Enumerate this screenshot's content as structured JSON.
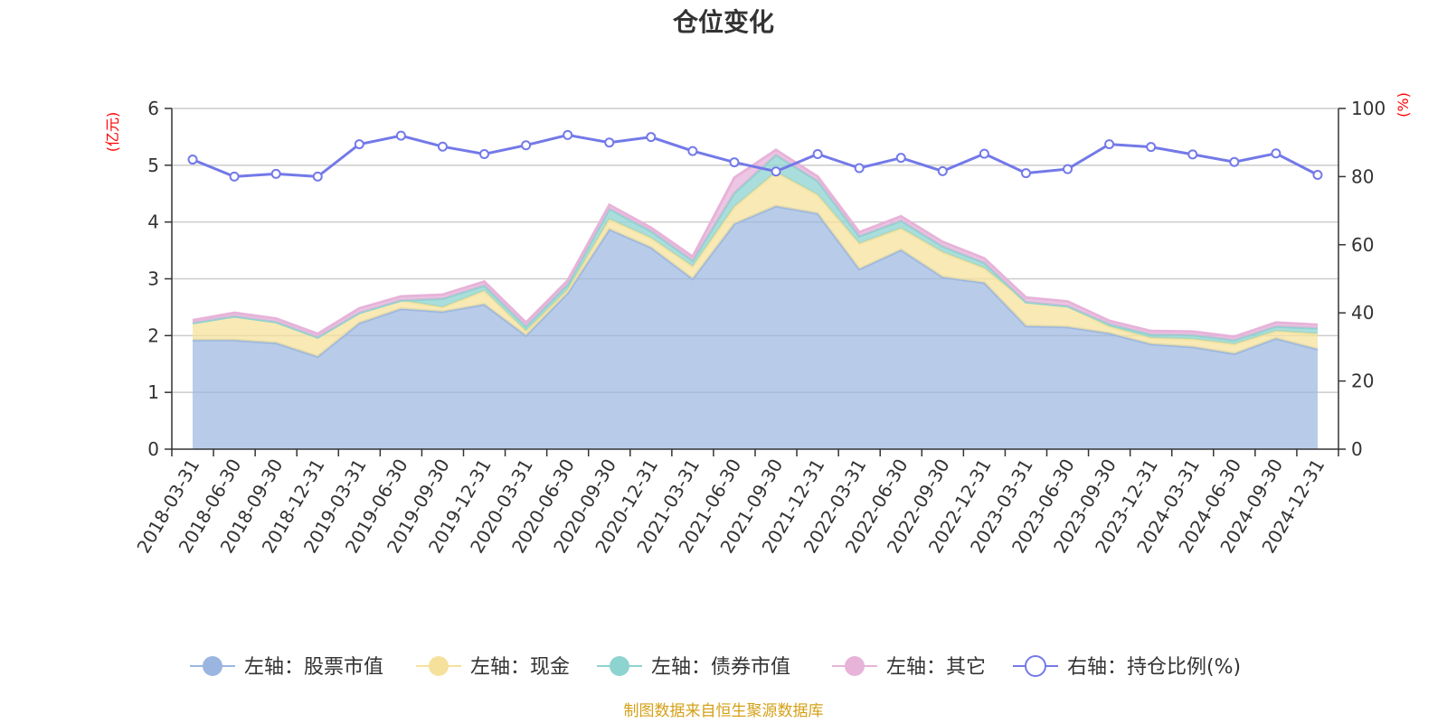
{
  "chart_data": {
    "type": "area",
    "title": "仓位变化",
    "left_axis_unit": "(亿元)",
    "right_axis_unit": "(%)",
    "ylim_left": [
      0,
      6
    ],
    "yticks_left": [
      0,
      1,
      2,
      3,
      4,
      5,
      6
    ],
    "ylim_right": [
      0,
      100
    ],
    "yticks_right": [
      0,
      20,
      40,
      60,
      80,
      100
    ],
    "categories": [
      "2018-03-31",
      "2018-06-30",
      "2018-09-30",
      "2018-12-31",
      "2019-03-31",
      "2019-06-30",
      "2019-09-30",
      "2019-12-31",
      "2020-03-31",
      "2020-06-30",
      "2020-09-30",
      "2020-12-31",
      "2021-03-31",
      "2021-06-30",
      "2021-09-30",
      "2021-12-31",
      "2022-03-31",
      "2022-06-30",
      "2022-09-30",
      "2022-12-31",
      "2023-03-31",
      "2023-06-30",
      "2023-09-30",
      "2023-12-31",
      "2024-03-31",
      "2024-06-30",
      "2024-09-30",
      "2024-12-31"
    ],
    "series": [
      {
        "name": "左轴：股票市值",
        "axis": "left",
        "kind": "stacked-area",
        "color": "#9ab6e0",
        "values": [
          1.92,
          1.92,
          1.87,
          1.63,
          2.22,
          2.47,
          2.42,
          2.55,
          2.0,
          2.75,
          3.87,
          3.55,
          3.0,
          3.97,
          4.28,
          4.15,
          3.17,
          3.51,
          3.03,
          2.93,
          2.17,
          2.15,
          2.04,
          1.85,
          1.8,
          1.68,
          1.95,
          1.76
        ]
      },
      {
        "name": "左轴：现金",
        "axis": "left",
        "kind": "stacked-area",
        "color": "#f5e19c",
        "values": [
          0.3,
          0.42,
          0.37,
          0.34,
          0.18,
          0.15,
          0.08,
          0.24,
          0.08,
          0.06,
          0.18,
          0.17,
          0.22,
          0.3,
          0.6,
          0.33,
          0.45,
          0.38,
          0.44,
          0.26,
          0.42,
          0.37,
          0.12,
          0.11,
          0.14,
          0.17,
          0.13,
          0.27
        ]
      },
      {
        "name": "左轴：债券市值",
        "axis": "left",
        "kind": "stacked-area",
        "color": "#8dd3d0",
        "values": [
          0,
          0,
          0,
          0,
          0,
          0,
          0.15,
          0.09,
          0.08,
          0.09,
          0.18,
          0.12,
          0.1,
          0.24,
          0.3,
          0.24,
          0.13,
          0.13,
          0.1,
          0.09,
          0,
          0,
          0.04,
          0.06,
          0.07,
          0.07,
          0.08,
          0.1
        ]
      },
      {
        "name": "左轴：其它",
        "axis": "left",
        "kind": "stacked-area",
        "color": "#e7b3d9",
        "values": [
          0.05,
          0.06,
          0.06,
          0.06,
          0.08,
          0.07,
          0.07,
          0.07,
          0.07,
          0.07,
          0.07,
          0.06,
          0.07,
          0.27,
          0.09,
          0.08,
          0.07,
          0.08,
          0.08,
          0.08,
          0.08,
          0.08,
          0.06,
          0.06,
          0.06,
          0.06,
          0.07,
          0.06
        ]
      },
      {
        "name": "右轴：持仓比例(%)",
        "axis": "right",
        "kind": "line",
        "color": "#7379e8",
        "values": [
          85,
          80,
          80.8,
          80,
          89.5,
          92,
          88.8,
          86.6,
          89.2,
          92.2,
          90,
          91.6,
          87.5,
          84.2,
          81.5,
          86.6,
          82.5,
          85.5,
          81.6,
          86.7,
          81,
          82.2,
          89.5,
          88.7,
          86.5,
          84.3,
          86.8,
          80.5
        ]
      }
    ],
    "legend_position": "bottom",
    "grid": true
  },
  "source_note": "制图数据来自恒生聚源数据库"
}
